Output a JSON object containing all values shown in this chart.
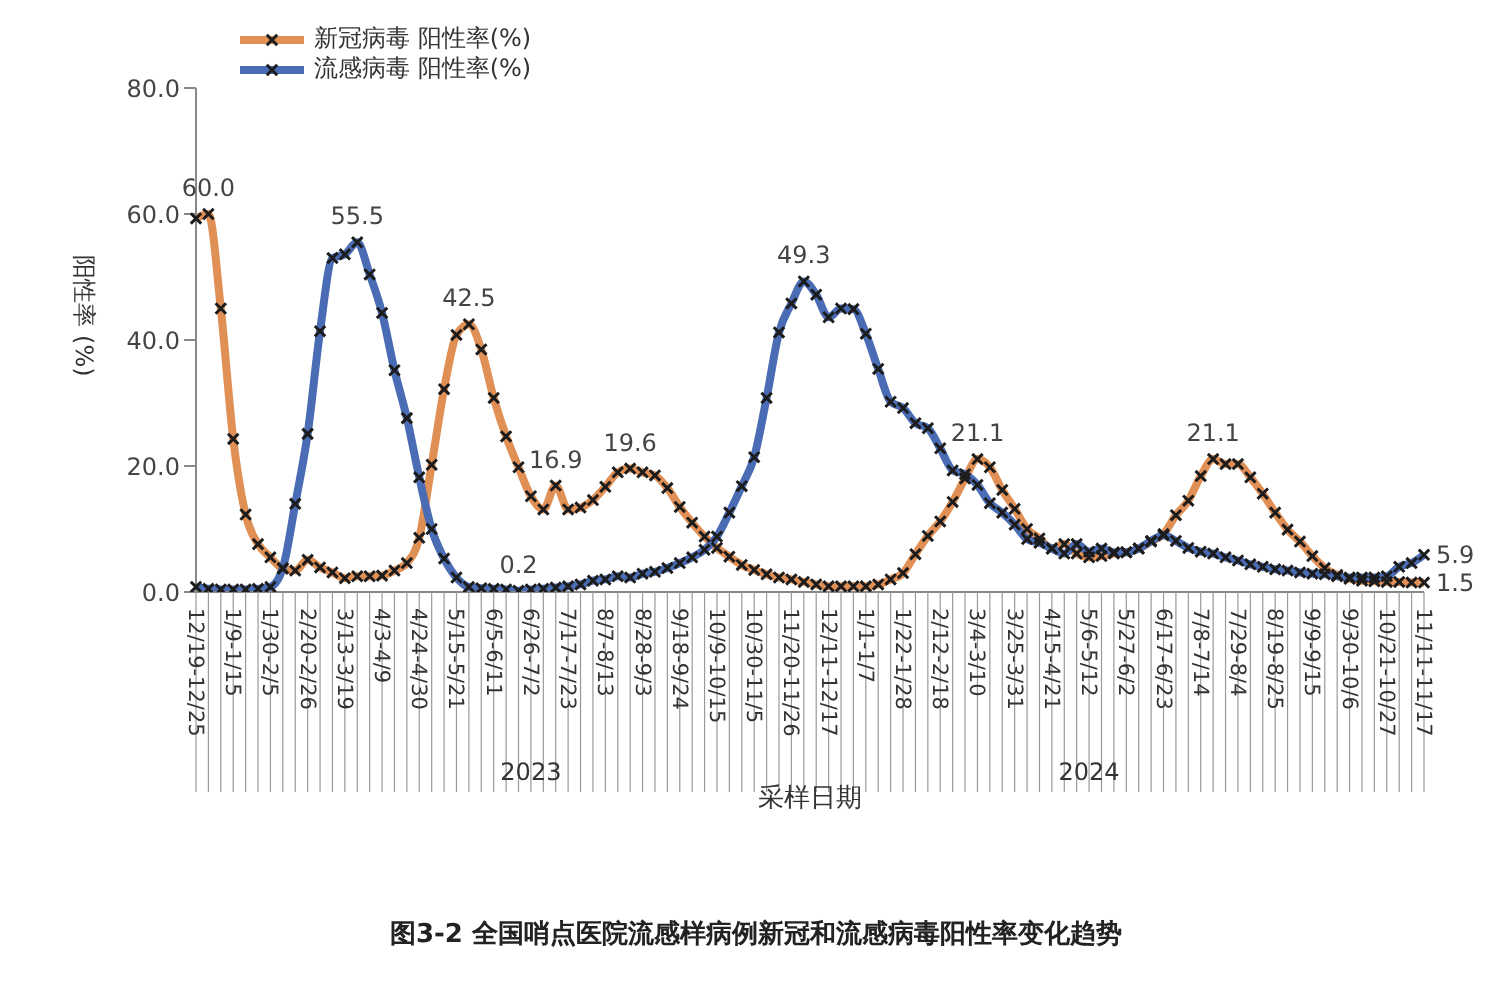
{
  "chart_data": {
    "type": "line",
    "title": "图3-2  全国哨点医院流感样病例新冠和流感病毒阳性率变化趋势",
    "xlabel": "采样日期",
    "ylabel": "阳性率 (%)",
    "categories": [
      "12/19-12/25",
      null,
      null,
      "1/9-1/15",
      null,
      null,
      "1/30-2/5",
      null,
      null,
      "2/20-2/26",
      null,
      null,
      "3/13-3/19",
      null,
      null,
      "4/3-4/9",
      null,
      null,
      "4/24-4/30",
      null,
      null,
      "5/15-5/21",
      null,
      null,
      "6/5-6/11",
      null,
      null,
      "6/26-7/2",
      null,
      null,
      "7/17-7/23",
      null,
      null,
      "8/7-8/13",
      null,
      null,
      "8/28-9/3",
      null,
      null,
      "9/18-9/24",
      null,
      null,
      "10/9-10/15",
      null,
      null,
      "10/30-11/5",
      null,
      null,
      "11/20-11/26",
      null,
      null,
      "12/11-12/17",
      null,
      null,
      "1/1-1/7",
      null,
      null,
      "1/22-1/28",
      null,
      null,
      "2/12-2/18",
      null,
      null,
      "3/4-3/10",
      null,
      null,
      "3/25-3/31",
      null,
      null,
      "4/15-4/21",
      null,
      null,
      "5/6-5/12",
      null,
      null,
      "5/27-6/2",
      null,
      null,
      "6/17-6/23",
      null,
      null,
      "7/8-7/14",
      null,
      null,
      "7/29-8/4",
      null,
      null,
      "8/19-8/25",
      null,
      null,
      "9/9-9/15",
      null,
      null,
      "9/30-10/6",
      null,
      null,
      "10/21-10/27",
      null,
      null,
      "11/11-11/17"
    ],
    "annotations": [
      {
        "text": "2023",
        "x": "6/26-7/2"
      },
      {
        "text": "2024",
        "x": "5/6-5/12"
      }
    ],
    "series": [
      {
        "name": "新冠病毒 阳性率(%)",
        "color": "#e08f55",
        "values": [
          59.3,
          60.0,
          45.0,
          24.3,
          12.3,
          7.6,
          5.5,
          3.7,
          3.4,
          5.1,
          3.9,
          3.1,
          2.2,
          2.5,
          2.5,
          2.6,
          3.4,
          4.6,
          8.6,
          20.2,
          32.2,
          40.8,
          42.5,
          38.5,
          30.8,
          24.7,
          19.8,
          15.2,
          13.1,
          16.9,
          13.1,
          13.4,
          14.6,
          16.7,
          19.0,
          19.6,
          19.0,
          18.5,
          16.5,
          13.5,
          11.0,
          8.8,
          7.0,
          5.6,
          4.3,
          3.5,
          2.8,
          2.3,
          2.0,
          1.6,
          1.2,
          0.9,
          0.9,
          0.9,
          0.9,
          1.2,
          2.0,
          3.0,
          6.0,
          8.9,
          11.2,
          14.3,
          18.0,
          21.1,
          19.8,
          16.2,
          13.2,
          10.0,
          8.5,
          6.9,
          7.6,
          6.1,
          5.5,
          5.7,
          6.1,
          6.3,
          6.9,
          8.0,
          9.2,
          12.2,
          14.5,
          18.4,
          21.1,
          20.3,
          20.3,
          18.2,
          15.6,
          12.6,
          9.9,
          8.0,
          5.7,
          3.8,
          2.7,
          2.1,
          1.8,
          1.7,
          1.6,
          1.6,
          1.5,
          1.5
        ],
        "value_labels": [
          null,
          "60.0",
          null,
          null,
          null,
          null,
          null,
          null,
          null,
          null,
          null,
          null,
          null,
          null,
          null,
          null,
          null,
          null,
          null,
          null,
          null,
          null,
          "42.5",
          null,
          null,
          null,
          null,
          null,
          null,
          "16.9",
          null,
          null,
          null,
          null,
          null,
          "19.6",
          null,
          null,
          null,
          null,
          null,
          null,
          null,
          null,
          null,
          null,
          null,
          null,
          null,
          null,
          null,
          null,
          null,
          null,
          null,
          null,
          null,
          null,
          null,
          null,
          null,
          null,
          null,
          "21.1",
          null,
          null,
          null,
          null,
          null,
          null,
          null,
          null,
          null,
          null,
          null,
          null,
          null,
          null,
          null,
          null,
          null,
          null,
          "21.1",
          null,
          null,
          null,
          null,
          null,
          null,
          null,
          null,
          null,
          null,
          null,
          null,
          null,
          null,
          null,
          null,
          "1.5"
        ]
      },
      {
        "name": "流感病毒 阳性率(%)",
        "color": "#4a6cb4",
        "values": [
          0.8,
          0.5,
          0.4,
          0.4,
          0.4,
          0.5,
          0.8,
          3.8,
          14.0,
          25.1,
          41.4,
          53.0,
          53.6,
          55.5,
          50.4,
          44.3,
          35.2,
          27.6,
          18.2,
          10.0,
          5.3,
          2.3,
          0.8,
          0.6,
          0.5,
          0.4,
          0.2,
          0.4,
          0.5,
          0.7,
          0.9,
          1.2,
          1.8,
          2.0,
          2.5,
          2.3,
          2.9,
          3.2,
          3.8,
          4.6,
          5.5,
          6.7,
          8.8,
          12.6,
          16.8,
          21.4,
          30.8,
          41.2,
          45.8,
          49.3,
          47.2,
          43.6,
          45.0,
          44.9,
          41.0,
          35.4,
          30.2,
          29.2,
          26.8,
          26.0,
          22.8,
          19.3,
          18.7,
          17.0,
          14.1,
          12.6,
          10.7,
          8.4,
          7.8,
          6.9,
          6.1,
          7.6,
          6.4,
          6.9,
          6.3,
          6.3,
          6.9,
          8.1,
          9.0,
          8.1,
          7.0,
          6.4,
          6.1,
          5.5,
          5.0,
          4.4,
          4.0,
          3.6,
          3.4,
          3.1,
          2.9,
          2.8,
          2.5,
          2.3,
          2.3,
          2.3,
          2.5,
          4.0,
          4.6,
          5.9
        ],
        "value_labels": [
          null,
          null,
          null,
          null,
          null,
          null,
          null,
          null,
          null,
          null,
          null,
          null,
          null,
          "55.5",
          null,
          null,
          null,
          null,
          null,
          null,
          null,
          null,
          null,
          null,
          null,
          null,
          "0.2",
          null,
          null,
          null,
          null,
          null,
          null,
          null,
          null,
          null,
          null,
          null,
          null,
          null,
          null,
          null,
          null,
          null,
          null,
          null,
          null,
          null,
          null,
          "49.3",
          null,
          null,
          null,
          null,
          null,
          null,
          null,
          null,
          null,
          null,
          null,
          null,
          null,
          null,
          null,
          null,
          null,
          null,
          null,
          null,
          null,
          null,
          null,
          null,
          null,
          null,
          null,
          null,
          null,
          null,
          null,
          null,
          null,
          null,
          null,
          null,
          null,
          null,
          null,
          null,
          null,
          null,
          null,
          null,
          null,
          null,
          null,
          null,
          null,
          "5.9"
        ]
      }
    ],
    "ylim": [
      0,
      80
    ],
    "yticks": [
      {
        "value": 0,
        "label": "0.0"
      },
      {
        "value": 20,
        "label": "20.0"
      },
      {
        "value": 40,
        "label": "40.0"
      },
      {
        "value": 60,
        "label": "60.0"
      },
      {
        "value": 80,
        "label": "80.0"
      }
    ],
    "grid": false,
    "legend": "top left",
    "marker": "cross",
    "line_style": "solid"
  }
}
